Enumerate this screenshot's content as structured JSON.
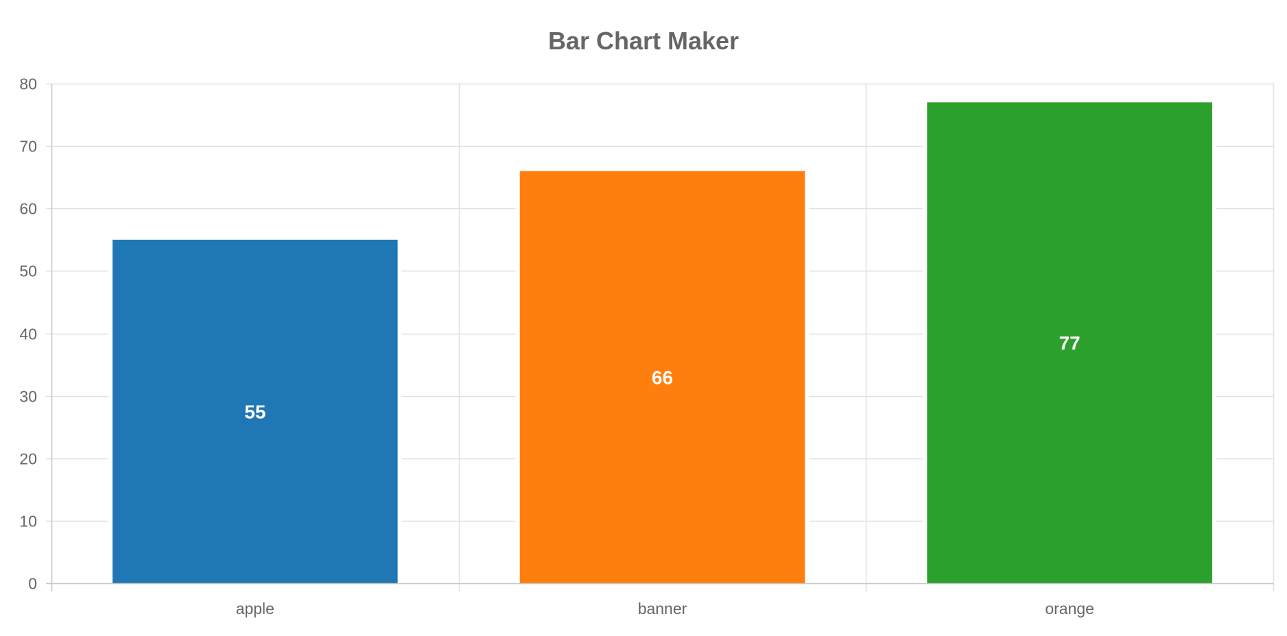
{
  "chart_data": {
    "type": "bar",
    "title": "Bar Chart Maker",
    "xlabel": "",
    "ylabel": "",
    "categories": [
      "apple",
      "banner",
      "orange"
    ],
    "values": [
      55,
      66,
      77
    ],
    "data_labels": [
      "55",
      "66",
      "77"
    ],
    "colors": [
      "#1f77b4",
      "#ff7f0e",
      "#2ca02c"
    ],
    "ylim": [
      0,
      80
    ],
    "yticks": [
      0,
      10,
      20,
      30,
      40,
      50,
      60,
      70,
      80
    ],
    "ytick_labels": [
      "0",
      "10",
      "20",
      "30",
      "40",
      "50",
      "60",
      "70",
      "80"
    ],
    "grid": true,
    "legend": "none"
  }
}
